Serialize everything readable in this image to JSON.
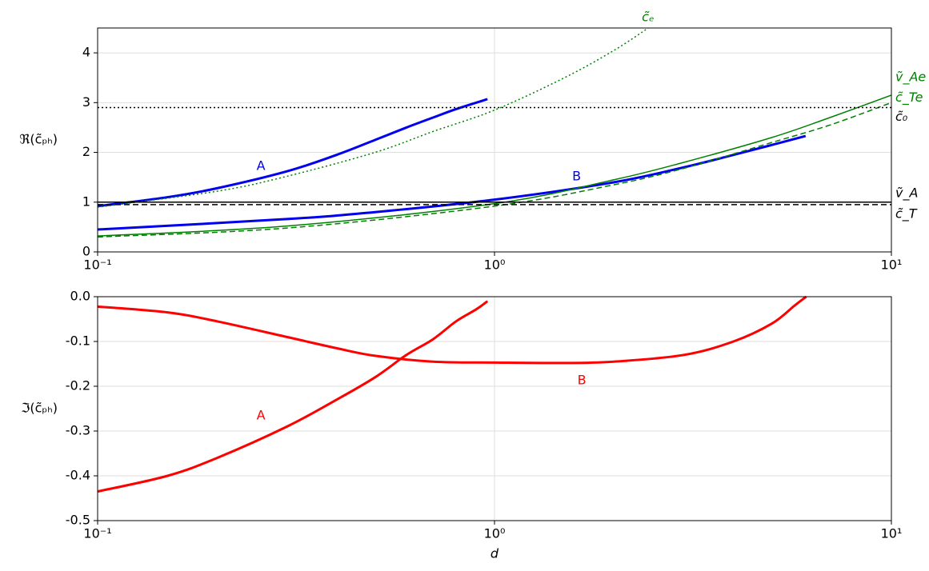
{
  "chart_data": [
    {
      "type": "line",
      "ylabel": "ℜ(c̃ₚₕ)",
      "log_x": true,
      "grid": true,
      "xlim": [
        0.1,
        10
      ],
      "xticks": [
        {
          "value": 0.1,
          "label": "10⁻¹"
        },
        {
          "value": 1,
          "label": "10⁰"
        },
        {
          "value": 10,
          "label": "10¹"
        }
      ],
      "ylim": [
        0,
        4.5
      ],
      "yticks": [
        0,
        1,
        2,
        3,
        4
      ],
      "series": [
        {
          "color": "#0000ee",
          "dash": "solid",
          "width": 3,
          "x": [
            0.1,
            0.15,
            0.2,
            0.3,
            0.4,
            0.5,
            0.6,
            0.7,
            0.8,
            0.96
          ],
          "values": [
            0.92,
            1.1,
            1.28,
            1.62,
            1.95,
            2.25,
            2.5,
            2.7,
            2.87,
            3.07
          ]
        },
        {
          "color": "#0000ee",
          "dash": "solid",
          "width": 3,
          "x": [
            0.1,
            0.3,
            0.5,
            1,
            2,
            3,
            4,
            5,
            6.08
          ],
          "values": [
            0.45,
            0.66,
            0.8,
            1.05,
            1.4,
            1.7,
            1.95,
            2.15,
            2.33
          ]
        },
        {
          "name": "c̃ₑ",
          "color": "#008000",
          "dash": "dotted",
          "width": 1.5,
          "x": [
            0.1,
            0.2,
            0.3,
            0.5,
            0.7,
            1,
            1.5,
            2,
            2.44
          ],
          "values": [
            0.9,
            1.22,
            1.52,
            2.0,
            2.42,
            2.85,
            3.5,
            4.05,
            4.5
          ]
        },
        {
          "name": "ṽ_Ae",
          "color": "#008000",
          "dash": "solid",
          "width": 1.5,
          "x": [
            0.1,
            0.3,
            1,
            2,
            3,
            5,
            7,
            10
          ],
          "values": [
            0.32,
            0.52,
            0.97,
            1.45,
            1.8,
            2.3,
            2.7,
            3.15
          ]
        },
        {
          "name": "c̃_Te",
          "color": "#008000",
          "dash": "dashed",
          "width": 1.5,
          "x": [
            0.1,
            0.3,
            1,
            2,
            3,
            5,
            7,
            10
          ],
          "values": [
            0.3,
            0.48,
            0.92,
            1.35,
            1.68,
            2.2,
            2.55,
            3.0
          ]
        },
        {
          "name": "c̃₀",
          "color": "#000000",
          "dash": "dotted",
          "width": 1.5,
          "x": [
            0.1,
            10
          ],
          "values": [
            2.9,
            2.9
          ]
        },
        {
          "name": "ṽ_A",
          "color": "#000000",
          "dash": "solid",
          "width": 1.5,
          "x": [
            0.1,
            10
          ],
          "values": [
            1.0,
            1.0
          ]
        },
        {
          "name": "c̃_T",
          "color": "#000000",
          "dash": "dashed",
          "width": 1.5,
          "x": [
            0.1,
            10
          ],
          "values": [
            0.95,
            0.95
          ]
        }
      ],
      "annotations": [
        {
          "text": "A",
          "x": 0.258,
          "y": 1.72,
          "color": "#0000ee"
        },
        {
          "text": "B",
          "x": 1.61,
          "y": 1.51,
          "color": "#0000ee"
        }
      ]
    },
    {
      "type": "line",
      "ylabel": "ℑ(c̃ₚₕ)",
      "xlabel": "d",
      "log_x": true,
      "grid": true,
      "xlim": [
        0.1,
        10
      ],
      "xticks": [
        {
          "value": 0.1,
          "label": "10⁻¹"
        },
        {
          "value": 1,
          "label": "10⁰"
        },
        {
          "value": 10,
          "label": "10¹"
        }
      ],
      "ylim": [
        -0.5,
        0
      ],
      "yticks": [
        -0.5,
        -0.4,
        -0.3,
        -0.2,
        -0.1,
        {
          "value": 0,
          "label": "0.0"
        }
      ],
      "series": [
        {
          "color": "#ff0000",
          "dash": "solid",
          "width": 3,
          "x": [
            0.1,
            0.15,
            0.2,
            0.3,
            0.4,
            0.5,
            0.6,
            0.7,
            0.8,
            0.9,
            0.96
          ],
          "values": [
            -0.435,
            -0.4,
            -0.36,
            -0.29,
            -0.23,
            -0.18,
            -0.13,
            -0.095,
            -0.055,
            -0.028,
            -0.01
          ]
        },
        {
          "color": "#ff0000",
          "dash": "solid",
          "width": 3,
          "x": [
            0.1,
            0.15,
            0.2,
            0.3,
            0.4,
            0.5,
            0.7,
            1,
            1.5,
            2,
            3,
            4,
            5,
            5.7,
            6.1
          ],
          "values": [
            -0.022,
            -0.035,
            -0.055,
            -0.09,
            -0.115,
            -0.132,
            -0.145,
            -0.147,
            -0.148,
            -0.145,
            -0.13,
            -0.1,
            -0.06,
            -0.02,
            0
          ]
        }
      ],
      "annotations": [
        {
          "text": "A",
          "x": 0.258,
          "y": -0.266,
          "color": "#ff0000"
        },
        {
          "text": "B",
          "x": 1.66,
          "y": -0.1875,
          "color": "#ff0000"
        }
      ]
    }
  ]
}
